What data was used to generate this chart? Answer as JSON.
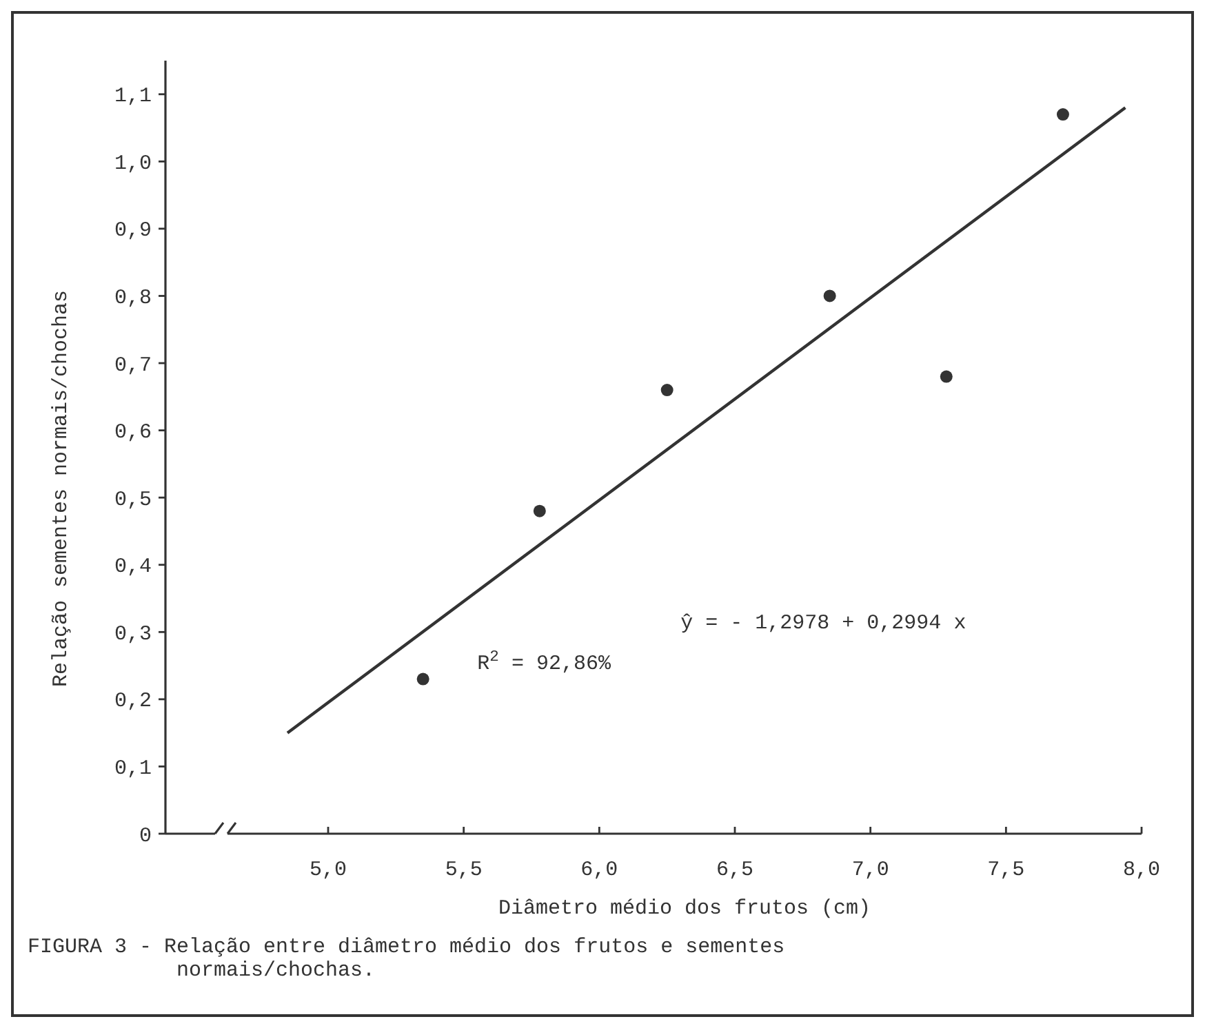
{
  "chart_data": {
    "type": "scatter",
    "xlabel": "Diâmetro médio dos frutos (cm)",
    "ylabel": "Relação sementes normais/chochas",
    "xlim": [
      4.4,
      8.0
    ],
    "ylim": [
      0,
      1.15
    ],
    "xticks": [
      {
        "value": 5.0,
        "label": "5,0"
      },
      {
        "value": 5.5,
        "label": "5,5"
      },
      {
        "value": 6.0,
        "label": "6,0"
      },
      {
        "value": 6.5,
        "label": "6,5"
      },
      {
        "value": 7.0,
        "label": "7,0"
      },
      {
        "value": 7.5,
        "label": "7,5"
      },
      {
        "value": 8.0,
        "label": "8,0"
      }
    ],
    "yticks": [
      0,
      {
        "value": 0.1,
        "label": "0,1"
      },
      {
        "value": 0.2,
        "label": "0,2"
      },
      {
        "value": 0.3,
        "label": "0,3"
      },
      {
        "value": 0.4,
        "label": "0,4"
      },
      {
        "value": 0.5,
        "label": "0,5"
      },
      {
        "value": 0.6,
        "label": "0,6"
      },
      {
        "value": 0.7,
        "label": "0,7"
      },
      {
        "value": 0.8,
        "label": "0,8"
      },
      {
        "value": 0.9,
        "label": "0,9"
      },
      {
        "value": 1.0,
        "label": "1,0"
      },
      {
        "value": 1.1,
        "label": "1,1"
      }
    ],
    "grid": false,
    "series": [
      {
        "marker": "circle",
        "color": "#333333",
        "x": [
          5.35,
          5.78,
          6.25,
          6.85,
          7.28,
          7.71
        ],
        "values": [
          0.23,
          0.48,
          0.66,
          0.8,
          0.68,
          1.07
        ]
      },
      {
        "type": "line",
        "line_style": "solid",
        "color": "#333333",
        "x": [
          4.85,
          7.94
        ],
        "values": [
          0.15,
          1.08
        ]
      }
    ],
    "annotations": [
      "ŷ = - 1,2978 + 0,2994 x",
      "R$^{2}$ = 92,86%",
      "FIGURA 3 - Relação entre diâmetro médio dos frutos e sementes normais/chochas."
    ]
  }
}
